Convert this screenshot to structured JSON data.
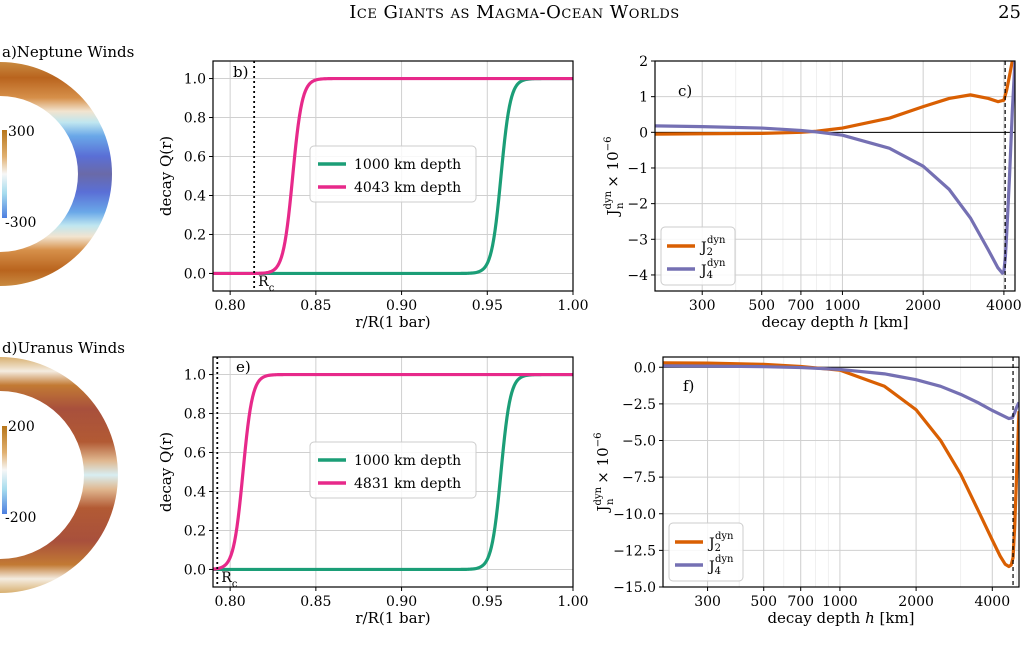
{
  "header": {
    "running_head": "Ice Giants as Magma-Ocean Worlds",
    "page_number": "25"
  },
  "panels": {
    "a": {
      "label": "a)Neptune Winds",
      "cbar_max": "300",
      "cbar_min": "-300"
    },
    "b": {
      "label": "b)",
      "core_label": "R",
      "core_sub": "c"
    },
    "c": {
      "label": "c)"
    },
    "d": {
      "label": "d)Uranus Winds",
      "cbar_max": "200",
      "cbar_min": "-200"
    },
    "e": {
      "label": "e)",
      "core_label": "R",
      "core_sub": "c"
    },
    "f": {
      "label": "f)"
    }
  },
  "colors": {
    "green": "#1b9e77",
    "magenta": "#e7298a",
    "orange": "#d95f02",
    "purple": "#7570b3",
    "grid": "#d0d0d0"
  },
  "chart_data": [
    {
      "id": "b",
      "type": "line",
      "xlabel": "r/R(1 bar)",
      "ylabel": "decay Q(r)",
      "xlim": [
        0.79,
        1.0
      ],
      "ylim": [
        -0.09,
        1.09
      ],
      "xticks": [
        0.8,
        0.85,
        0.9,
        0.95,
        1.0
      ],
      "xtick_labels": [
        "0.80",
        "0.85",
        "0.90",
        "0.95",
        "1.00"
      ],
      "yticks": [
        0.0,
        0.2,
        0.4,
        0.6,
        0.8,
        1.0
      ],
      "ytick_labels": [
        "0.0",
        "0.2",
        "0.4",
        "0.6",
        "0.8",
        "1.0"
      ],
      "core_radius": 0.814,
      "legend_position": "center",
      "series": [
        {
          "name": "1000 km depth",
          "color": "#1b9e77",
          "midpoint": 0.958,
          "width": 0.0055
        },
        {
          "name": "4043 km depth",
          "color": "#e7298a",
          "midpoint": 0.8365,
          "width": 0.0055
        }
      ]
    },
    {
      "id": "c",
      "type": "line",
      "xlabel": "decay depth h [km]",
      "ylabel": "J_n^dyn × 10^-6",
      "xscale": "log",
      "xlim": [
        200,
        4400
      ],
      "ylim": [
        -4.45,
        2.0
      ],
      "xticks": [
        300,
        500,
        700,
        1000,
        2000,
        4000
      ],
      "xtick_labels": [
        "300",
        "500",
        "700",
        "1000",
        "2000",
        "4000"
      ],
      "yticks": [
        -4,
        -3,
        -2,
        -1,
        0,
        1,
        2
      ],
      "ytick_labels": [
        "−4",
        "−3",
        "−2",
        "−1",
        "0",
        "1",
        "2"
      ],
      "vline": 4043,
      "legend_position": "bottom-left",
      "series": [
        {
          "name": "J2",
          "sup": "dyn",
          "color": "#d95f02",
          "x": [
            200,
            300,
            500,
            700,
            800,
            1000,
            1500,
            2000,
            2500,
            3000,
            3500,
            3800,
            4000,
            4100,
            4200,
            4300,
            4400
          ],
          "y": [
            -0.05,
            -0.04,
            -0.03,
            0.0,
            0.03,
            0.12,
            0.4,
            0.72,
            0.95,
            1.05,
            0.95,
            0.86,
            0.9,
            1.2,
            1.6,
            2.0,
            2.0
          ]
        },
        {
          "name": "J4",
          "sup": "dyn",
          "color": "#7570b3",
          "x": [
            200,
            300,
            500,
            700,
            800,
            1000,
            1500,
            2000,
            2500,
            3000,
            3500,
            3800,
            3950,
            4000,
            4050,
            4100,
            4200,
            4300,
            4400
          ],
          "y": [
            0.18,
            0.16,
            0.12,
            0.05,
            0.01,
            -0.08,
            -0.45,
            -0.95,
            -1.6,
            -2.4,
            -3.3,
            -3.8,
            -3.95,
            -3.9,
            -3.5,
            -2.8,
            -1.2,
            0.6,
            2.0
          ]
        }
      ]
    },
    {
      "id": "e",
      "type": "line",
      "xlabel": "r/R(1 bar)",
      "ylabel": "decay Q(r)",
      "xlim": [
        0.79,
        1.0
      ],
      "ylim": [
        -0.09,
        1.09
      ],
      "xticks": [
        0.8,
        0.85,
        0.9,
        0.95,
        1.0
      ],
      "xtick_labels": [
        "0.80",
        "0.85",
        "0.90",
        "0.95",
        "1.00"
      ],
      "yticks": [
        0.0,
        0.2,
        0.4,
        0.6,
        0.8,
        1.0
      ],
      "ytick_labels": [
        "0.0",
        "0.2",
        "0.4",
        "0.6",
        "0.8",
        "1.0"
      ],
      "core_radius": 0.7925,
      "legend_position": "center",
      "series": [
        {
          "name": "1000 km depth",
          "color": "#1b9e77",
          "midpoint": 0.958,
          "width": 0.0055
        },
        {
          "name": "4831 km depth",
          "color": "#e7298a",
          "midpoint": 0.8075,
          "width": 0.0055
        }
      ]
    },
    {
      "id": "f",
      "type": "line",
      "xlabel": "decay depth h [km]",
      "ylabel": "J_n^dyn × 10^-6",
      "xscale": "log",
      "xlim": [
        200,
        5100
      ],
      "ylim": [
        -15.0,
        0.7
      ],
      "xticks": [
        300,
        500,
        700,
        1000,
        2000,
        4000
      ],
      "xtick_labels": [
        "300",
        "500",
        "700",
        "1000",
        "2000",
        "4000"
      ],
      "yticks": [
        -15.0,
        -12.5,
        -10.0,
        -7.5,
        -5.0,
        -2.5,
        0.0
      ],
      "ytick_labels": [
        "−15.0",
        "−12.5",
        "−10.0",
        "−7.5",
        "−5.0",
        "−2.5",
        "0.0"
      ],
      "vline": 4831,
      "legend_position": "bottom-left",
      "series": [
        {
          "name": "J2",
          "sup": "dyn",
          "color": "#d95f02",
          "x": [
            200,
            300,
            500,
            700,
            1000,
            1500,
            2000,
            2500,
            3000,
            3500,
            4000,
            4300,
            4500,
            4650,
            4750,
            4831,
            4900,
            5000,
            5100
          ],
          "y": [
            0.3,
            0.28,
            0.2,
            0.05,
            -0.2,
            -1.3,
            -2.9,
            -5.0,
            -7.3,
            -9.7,
            -11.8,
            -12.9,
            -13.45,
            -13.6,
            -13.5,
            -13.0,
            -11.0,
            -7.0,
            -3.0
          ]
        },
        {
          "name": "J4",
          "sup": "dyn",
          "color": "#7570b3",
          "x": [
            200,
            300,
            500,
            700,
            1000,
            1500,
            2000,
            2500,
            3000,
            3500,
            4000,
            4400,
            4650,
            4800,
            4900,
            5000,
            5100
          ],
          "y": [
            0.1,
            0.08,
            0.04,
            -0.02,
            -0.15,
            -0.45,
            -0.85,
            -1.3,
            -1.85,
            -2.4,
            -2.95,
            -3.3,
            -3.5,
            -3.45,
            -3.1,
            -2.7,
            -2.4
          ]
        }
      ]
    }
  ]
}
